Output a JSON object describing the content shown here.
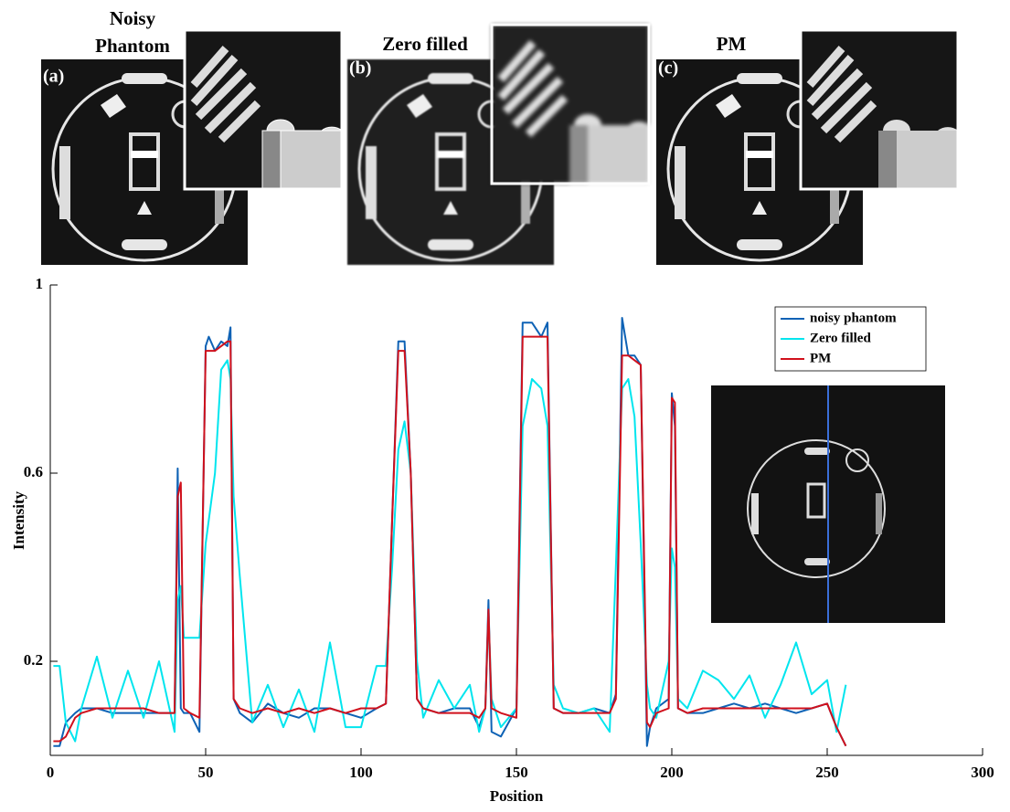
{
  "panels": [
    {
      "title": "Noisy Phantom",
      "label": "(a)"
    },
    {
      "title": "Zero filled",
      "label": "(b)"
    },
    {
      "title": "PM",
      "label": "(c)"
    }
  ],
  "chart_data": {
    "type": "line",
    "xlabel": "Position",
    "ylabel": "Intensity",
    "xlim": [
      0,
      300
    ],
    "xticks": [
      0,
      50,
      100,
      150,
      200,
      250,
      300
    ],
    "ylim": [
      0,
      1
    ],
    "yticks": [
      0.2,
      0.6,
      1
    ],
    "legend": "upper right",
    "x": [
      1,
      3,
      5,
      8,
      10,
      15,
      20,
      25,
      30,
      35,
      40,
      41,
      42,
      43,
      45,
      48,
      50,
      51,
      53,
      55,
      57,
      58,
      59,
      61,
      65,
      70,
      75,
      80,
      85,
      90,
      95,
      100,
      105,
      108,
      110,
      112,
      114,
      116,
      118,
      120,
      125,
      130,
      135,
      138,
      140,
      141,
      142,
      145,
      150,
      152,
      155,
      158,
      160,
      162,
      165,
      170,
      175,
      180,
      182,
      184,
      186,
      188,
      190,
      192,
      193,
      195,
      199,
      200,
      201,
      202,
      205,
      210,
      215,
      220,
      225,
      230,
      235,
      240,
      245,
      250,
      253,
      256
    ],
    "series": [
      {
        "name": "noisy phantom",
        "color": "#0e62b5",
        "values": [
          0.02,
          0.02,
          0.07,
          0.09,
          0.1,
          0.1,
          0.09,
          0.09,
          0.09,
          0.09,
          0.09,
          0.61,
          0.1,
          0.09,
          0.09,
          0.05,
          0.87,
          0.89,
          0.86,
          0.88,
          0.87,
          0.91,
          0.12,
          0.09,
          0.07,
          0.11,
          0.09,
          0.08,
          0.1,
          0.1,
          0.09,
          0.08,
          0.1,
          0.11,
          0.5,
          0.88,
          0.88,
          0.6,
          0.12,
          0.1,
          0.09,
          0.1,
          0.1,
          0.06,
          0.1,
          0.33,
          0.05,
          0.04,
          0.1,
          0.92,
          0.92,
          0.89,
          0.92,
          0.1,
          0.09,
          0.09,
          0.1,
          0.09,
          0.13,
          0.93,
          0.85,
          0.85,
          0.83,
          0.02,
          0.06,
          0.1,
          0.12,
          0.77,
          0.7,
          0.1,
          0.09,
          0.09,
          0.1,
          0.11,
          0.1,
          0.11,
          0.1,
          0.09,
          0.1,
          0.11,
          0.06,
          0.02
        ]
      },
      {
        "name": "Zero filled",
        "color": "#00e5ee",
        "values": [
          0.19,
          0.19,
          0.07,
          0.03,
          0.1,
          0.21,
          0.08,
          0.18,
          0.08,
          0.2,
          0.05,
          0.33,
          0.36,
          0.25,
          0.25,
          0.25,
          0.45,
          0.5,
          0.6,
          0.82,
          0.84,
          0.8,
          0.55,
          0.38,
          0.07,
          0.15,
          0.06,
          0.14,
          0.05,
          0.24,
          0.06,
          0.06,
          0.19,
          0.19,
          0.4,
          0.65,
          0.71,
          0.6,
          0.2,
          0.08,
          0.16,
          0.1,
          0.15,
          0.05,
          0.1,
          0.3,
          0.12,
          0.06,
          0.1,
          0.7,
          0.8,
          0.78,
          0.7,
          0.15,
          0.1,
          0.09,
          0.1,
          0.05,
          0.4,
          0.78,
          0.8,
          0.72,
          0.45,
          0.15,
          0.1,
          0.08,
          0.2,
          0.44,
          0.4,
          0.12,
          0.1,
          0.18,
          0.16,
          0.12,
          0.17,
          0.08,
          0.15,
          0.24,
          0.13,
          0.16,
          0.05,
          0.15
        ]
      },
      {
        "name": "PM",
        "color": "#d0101c",
        "values": [
          0.03,
          0.03,
          0.04,
          0.08,
          0.09,
          0.1,
          0.1,
          0.1,
          0.1,
          0.09,
          0.09,
          0.55,
          0.58,
          0.1,
          0.09,
          0.08,
          0.86,
          0.86,
          0.86,
          0.87,
          0.88,
          0.88,
          0.12,
          0.1,
          0.09,
          0.1,
          0.09,
          0.1,
          0.09,
          0.1,
          0.09,
          0.1,
          0.1,
          0.11,
          0.5,
          0.86,
          0.86,
          0.6,
          0.12,
          0.1,
          0.09,
          0.09,
          0.09,
          0.08,
          0.1,
          0.31,
          0.1,
          0.09,
          0.08,
          0.89,
          0.89,
          0.89,
          0.89,
          0.1,
          0.09,
          0.09,
          0.09,
          0.09,
          0.12,
          0.85,
          0.85,
          0.84,
          0.83,
          0.07,
          0.06,
          0.09,
          0.1,
          0.76,
          0.75,
          0.1,
          0.09,
          0.1,
          0.1,
          0.1,
          0.1,
          0.1,
          0.1,
          0.1,
          0.1,
          0.11,
          0.06,
          0.02
        ]
      }
    ]
  }
}
